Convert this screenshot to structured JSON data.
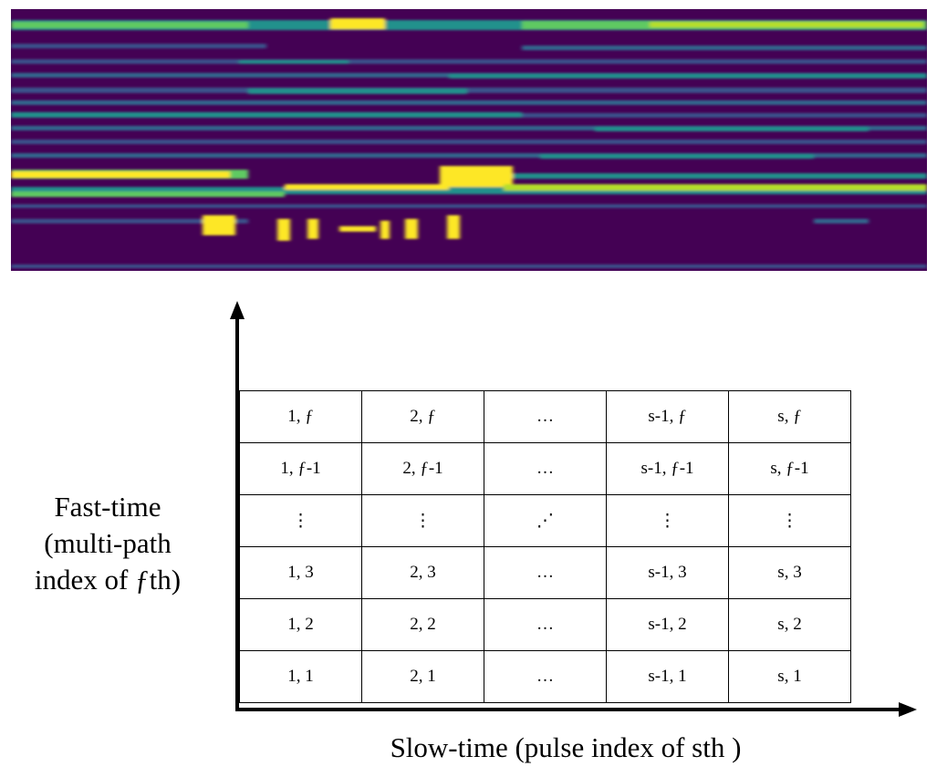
{
  "heatmap": {
    "colormap": [
      "#440154",
      "#3b528b",
      "#21918c",
      "#5ec962",
      "#fde725"
    ],
    "background": "#440154"
  },
  "diagram": {
    "y_axis_label": [
      "Fast-time",
      "(multi-path",
      "index of ƒth)"
    ],
    "x_axis_label": "Slow-time (pulse index of sth )",
    "rows": [
      [
        "1, ƒ",
        "2, ƒ",
        "…",
        "s-1, ƒ",
        "s, ƒ"
      ],
      [
        "1, ƒ-1",
        "2, ƒ-1",
        "…",
        "s-1, ƒ-1",
        "s, ƒ-1"
      ],
      [
        "⋮",
        "⋮",
        "⋰",
        "⋮",
        "⋮"
      ],
      [
        "1, 3",
        "2, 3",
        "…",
        "s-1, 3",
        "s, 3"
      ],
      [
        "1, 2",
        "2, 2",
        "…",
        "s-1, 2",
        "s, 2"
      ],
      [
        "1, 1",
        "2, 1",
        "…",
        "s-1, 1",
        "s, 1"
      ]
    ]
  }
}
